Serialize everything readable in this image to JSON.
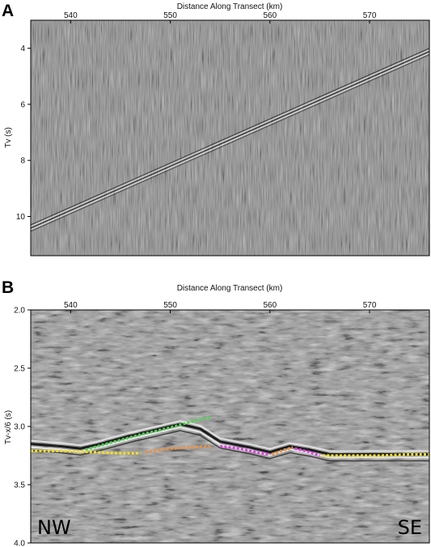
{
  "panels": [
    {
      "id": "A",
      "letter": "A",
      "x_axis_title": "Distance Along Transect (km)",
      "y_axis_title": "Tv (s)",
      "x_ticks": [
        540,
        550,
        560,
        570
      ],
      "x_range": [
        536,
        576
      ],
      "y_ticks": [
        "4",
        "6",
        "8",
        "10"
      ],
      "y_tick_values": [
        4,
        6,
        8,
        10
      ],
      "y_range": [
        3.0,
        11.4
      ],
      "y_reversed": true,
      "background": "#8c8c8c",
      "event_trend": {
        "from_km": 536,
        "from_tv": 10.4,
        "to_km": 576,
        "to_tv": 4.1
      }
    },
    {
      "id": "B",
      "letter": "B",
      "x_axis_title": "Distance Along Transect (km)",
      "y_axis_title": "Tv-x/6 (s)",
      "x_ticks": [
        540,
        550,
        560,
        570
      ],
      "x_range": [
        536,
        576
      ],
      "y_ticks": [
        "2.0",
        "2.5",
        "3.0",
        "3.5",
        "4.0"
      ],
      "y_tick_values": [
        2.0,
        2.5,
        3.0,
        3.5,
        4.0
      ],
      "y_range": [
        2.0,
        4.0
      ],
      "y_reversed": true,
      "background": "#999999",
      "label_left": "NW",
      "label_right": "SE",
      "picks": [
        {
          "color": "#f5e020",
          "points": [
            [
              536.0,
              3.21
            ],
            [
              539,
              3.21
            ],
            [
              542,
              3.22
            ],
            [
              545,
              3.23
            ],
            [
              547,
              3.23
            ]
          ]
        },
        {
          "color": "#f09040",
          "points": [
            [
              547.5,
              3.22
            ],
            [
              550,
              3.19
            ],
            [
              552,
              3.18
            ],
            [
              554,
              3.17
            ]
          ]
        },
        {
          "color": "#4dd44d",
          "points": [
            [
              541.5,
              3.2
            ],
            [
              544,
              3.14
            ],
            [
              547,
              3.07
            ],
            [
              550,
              3.01
            ],
            [
              552.5,
              2.95
            ],
            [
              554,
              2.92
            ]
          ]
        },
        {
          "color": "#e040e0",
          "points": [
            [
              555,
              3.17
            ],
            [
              557,
              3.19
            ],
            [
              558.5,
              3.22
            ],
            [
              560,
              3.24
            ]
          ]
        },
        {
          "color": "#f09040",
          "points": [
            [
              560.2,
              3.24
            ],
            [
              561.5,
              3.2
            ],
            [
              562.3,
              3.18
            ]
          ]
        },
        {
          "color": "#e040e0",
          "points": [
            [
              562.5,
              3.19
            ],
            [
              564,
              3.22
            ],
            [
              565,
              3.25
            ]
          ]
        },
        {
          "color": "#f5e020",
          "points": [
            [
              565.3,
              3.25
            ],
            [
              568,
              3.25
            ],
            [
              571,
              3.25
            ],
            [
              574,
              3.24
            ],
            [
              576,
              3.24
            ]
          ]
        }
      ],
      "reflector": [
        [
          536,
          3.15
        ],
        [
          539,
          3.17
        ],
        [
          541,
          3.19
        ],
        [
          543,
          3.15
        ],
        [
          546,
          3.08
        ],
        [
          549,
          3.02
        ],
        [
          551,
          2.98
        ],
        [
          553,
          3.02
        ],
        [
          555,
          3.13
        ],
        [
          558,
          3.18
        ],
        [
          560,
          3.22
        ],
        [
          562,
          3.17
        ],
        [
          564,
          3.2
        ],
        [
          566,
          3.24
        ],
        [
          576,
          3.24
        ]
      ]
    }
  ]
}
